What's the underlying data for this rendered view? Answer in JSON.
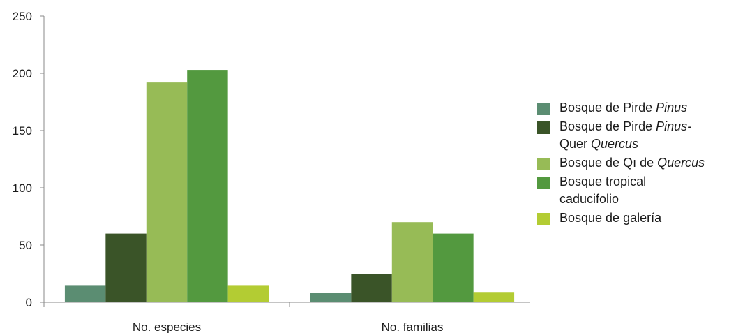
{
  "chart_data": {
    "type": "bar",
    "categories": [
      "No. especies",
      "No. familias"
    ],
    "ylim": [
      0,
      250
    ],
    "yticks": [
      0,
      50,
      100,
      150,
      200,
      250
    ],
    "grid": false,
    "legend_position": "right",
    "series": [
      {
        "name": "Bosque de Pirde Pinus",
        "label_lines": [
          [
            "Bosque de Pirde ",
            "Pinus"
          ]
        ],
        "color": "#5b8d72",
        "values": [
          15,
          8
        ]
      },
      {
        "name": "Bosque de Pirde Pinus- Quer Quercus",
        "label_lines": [
          [
            "Bosque de Pirde ",
            "Pinus-"
          ],
          [
            "Quer ",
            "Quercus"
          ]
        ],
        "color": "#3a5428",
        "values": [
          60,
          25
        ]
      },
      {
        "name": "Bosque de Qı de Quercus",
        "label_lines": [
          [
            "Bosque de Qı de ",
            "Quercus"
          ]
        ],
        "color": "#97bb56",
        "values": [
          192,
          70
        ]
      },
      {
        "name": "Bosque tropical caducifolio",
        "label_lines": [
          [
            "Bosque tropical",
            ""
          ],
          [
            "caducifolio",
            ""
          ]
        ],
        "color": "#53993f",
        "values": [
          203,
          60
        ]
      },
      {
        "name": "Bosque de galería",
        "label_lines": [
          [
            "Bosque de galería",
            ""
          ]
        ],
        "color": "#b3cc33",
        "values": [
          15,
          9
        ]
      }
    ]
  }
}
